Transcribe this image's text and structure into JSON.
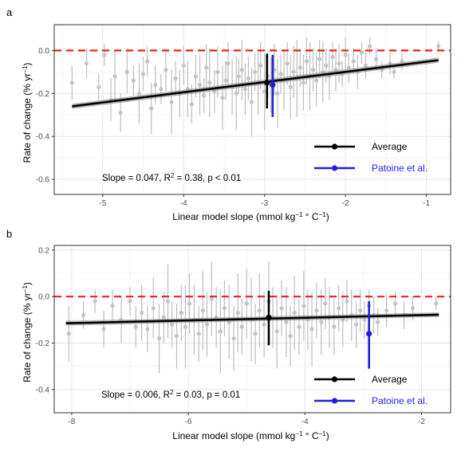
{
  "chart_data": [
    {
      "panel_label": "a",
      "type": "scatter",
      "xlabel": "Linear model slope (mmol kg",
      "xlabel_sup": "−1",
      "xlabel_tail": " ° C",
      "xlabel_sup2": "−1",
      "xlabel_close": ")",
      "ylabel": "Rate of change (% yr",
      "ylabel_sup": "−1",
      "ylabel_close": ")",
      "xlim": [
        -5.6,
        -0.7
      ],
      "ylim": [
        -0.67,
        0.12
      ],
      "xticks": [
        -5,
        -4,
        -3,
        -2,
        -1
      ],
      "xtick_labels": [
        "-5",
        "-4",
        "-3",
        "-2",
        "-1"
      ],
      "yticks": [
        0.0,
        -0.2,
        -0.4,
        -0.6
      ],
      "ytick_labels": [
        "0.0",
        "-0.2",
        "-0.4",
        "-0.6"
      ],
      "grid": true,
      "zero_line": 0.0,
      "regression": {
        "x": [
          -5.38,
          -0.85
        ],
        "y": [
          -0.26,
          -0.045
        ],
        "ci_halfwidth": 0.012
      },
      "stats_text": "Slope = 0.047,  R",
      "stats_sup": "2",
      "stats_tail": " = 0.38, p < 0.01",
      "average": {
        "x": -2.97,
        "y": -0.15,
        "low": -0.27,
        "high": -0.015
      },
      "patoine": {
        "x": -2.9,
        "y": -0.16,
        "low": -0.31,
        "high": -0.02
      },
      "legend_position": "bottom-right",
      "legend": [
        {
          "label": "Average",
          "color": "#000000"
        },
        {
          "label": "Patoine et al.",
          "color": "#1f1fe0"
        }
      ],
      "points": [
        [
          -5.38,
          -0.15,
          0.08
        ],
        [
          -5.2,
          -0.06,
          0.07
        ],
        [
          -5.05,
          -0.17,
          0.06
        ],
        [
          -4.98,
          -0.02,
          0.05
        ],
        [
          -4.9,
          -0.23,
          0.1
        ],
        [
          -4.85,
          -0.12,
          0.12
        ],
        [
          -4.78,
          -0.29,
          0.09
        ],
        [
          -4.7,
          -0.1,
          0.1
        ],
        [
          -4.62,
          -0.14,
          0.07
        ],
        [
          -4.55,
          -0.2,
          0.14
        ],
        [
          -4.5,
          -0.11,
          0.08
        ],
        [
          -4.45,
          -0.05,
          0.07
        ],
        [
          -4.4,
          -0.27,
          0.12
        ],
        [
          -4.35,
          -0.16,
          0.09
        ],
        [
          -4.28,
          -0.18,
          0.07
        ],
        [
          -4.22,
          -0.09,
          0.1
        ],
        [
          -4.15,
          -0.24,
          0.15
        ],
        [
          -4.1,
          -0.13,
          0.08
        ],
        [
          -4.05,
          -0.2,
          0.11
        ],
        [
          -4.0,
          -0.07,
          0.09
        ],
        [
          -3.95,
          -0.18,
          0.13
        ],
        [
          -3.9,
          -0.25,
          0.09
        ],
        [
          -3.85,
          -0.12,
          0.1
        ],
        [
          -3.8,
          -0.16,
          0.14
        ],
        [
          -3.75,
          -0.21,
          0.08
        ],
        [
          -3.72,
          -0.08,
          0.11
        ],
        [
          -3.68,
          -0.15,
          0.16
        ],
        [
          -3.62,
          -0.19,
          0.1
        ],
        [
          -3.58,
          -0.1,
          0.12
        ],
        [
          -3.52,
          -0.22,
          0.15
        ],
        [
          -3.48,
          -0.14,
          0.09
        ],
        [
          -3.45,
          -0.06,
          0.1
        ],
        [
          -3.4,
          -0.17,
          0.13
        ],
        [
          -3.35,
          -0.2,
          0.17
        ],
        [
          -3.32,
          -0.12,
          0.08
        ],
        [
          -3.28,
          -0.09,
          0.14
        ],
        [
          -3.24,
          -0.18,
          0.12
        ],
        [
          -3.2,
          -0.13,
          0.1
        ],
        [
          -3.16,
          -0.24,
          0.16
        ],
        [
          -3.12,
          -0.1,
          0.09
        ],
        [
          -3.08,
          -0.15,
          0.15
        ],
        [
          -3.05,
          -0.07,
          0.11
        ],
        [
          -3.0,
          -0.19,
          0.18
        ],
        [
          -2.96,
          -0.12,
          0.1
        ],
        [
          -2.92,
          -0.16,
          0.13
        ],
        [
          -2.88,
          -0.09,
          0.12
        ],
        [
          -2.84,
          -0.2,
          0.16
        ],
        [
          -2.8,
          -0.11,
          0.09
        ],
        [
          -2.76,
          -0.14,
          0.14
        ],
        [
          -2.72,
          -0.06,
          0.1
        ],
        [
          -2.68,
          -0.17,
          0.15
        ],
        [
          -2.64,
          -0.1,
          0.12
        ],
        [
          -2.6,
          -0.13,
          0.18
        ],
        [
          -2.56,
          -0.08,
          0.09
        ],
        [
          -2.52,
          -0.15,
          0.13
        ],
        [
          -2.48,
          -0.05,
          0.11
        ],
        [
          -2.44,
          -0.12,
          0.16
        ],
        [
          -2.4,
          -0.09,
          0.1
        ],
        [
          -2.36,
          -0.14,
          0.12
        ],
        [
          -2.32,
          -0.04,
          0.09
        ],
        [
          -2.28,
          -0.1,
          0.14
        ],
        [
          -2.24,
          -0.07,
          0.08
        ],
        [
          -2.2,
          -0.12,
          0.11
        ],
        [
          -2.16,
          -0.03,
          0.07
        ],
        [
          -2.12,
          -0.09,
          0.1
        ],
        [
          -2.08,
          -0.06,
          0.09
        ],
        [
          -2.04,
          -0.11,
          0.06
        ],
        [
          -2.0,
          -0.02,
          0.08
        ],
        [
          -1.96,
          -0.08,
          0.07
        ],
        [
          -1.9,
          -0.05,
          0.06
        ],
        [
          -1.85,
          -0.1,
          0.08
        ],
        [
          -1.8,
          -0.01,
          0.05
        ],
        [
          -1.75,
          -0.07,
          0.06
        ],
        [
          -1.7,
          0.02,
          0.04
        ],
        [
          -1.62,
          -0.04,
          0.05
        ],
        [
          -1.55,
          -0.09,
          0.04
        ],
        [
          -1.45,
          -0.06,
          0.05
        ],
        [
          -1.4,
          -0.1,
          0.03
        ],
        [
          -1.3,
          -0.05,
          0.04
        ],
        [
          -0.85,
          0.02,
          0.02
        ]
      ]
    },
    {
      "panel_label": "b",
      "type": "scatter",
      "xlabel": "Linear model slope (mmol kg",
      "xlabel_sup": "−1",
      "xlabel_tail": " ° C",
      "xlabel_sup2": "−1",
      "xlabel_close": ")",
      "ylabel": "Rate of change (% yr",
      "ylabel_sup": "−1",
      "ylabel_close": ")",
      "xlim": [
        -8.3,
        -1.5
      ],
      "ylim": [
        -0.5,
        0.22
      ],
      "xticks": [
        -8,
        -6,
        -4,
        -2
      ],
      "xtick_labels": [
        "-8",
        "-6",
        "-4",
        "-2"
      ],
      "yticks": [
        0.2,
        0.0,
        -0.2,
        -0.4
      ],
      "ytick_labels": [
        "0.2",
        "0.0",
        "-0.2",
        "-0.4"
      ],
      "grid": true,
      "zero_line": 0.0,
      "regression": {
        "x": [
          -8.1,
          -1.7
        ],
        "y": [
          -0.115,
          -0.078
        ],
        "ci_halfwidth": 0.01
      },
      "stats_text": "Slope = 0.006,  R",
      "stats_sup": "2",
      "stats_tail": " = 0.03, p = 0.01",
      "average": {
        "x": -4.62,
        "y": -0.09,
        "low": -0.21,
        "high": 0.025
      },
      "patoine": {
        "x": -2.9,
        "y": -0.16,
        "low": -0.31,
        "high": -0.02
      },
      "legend_position": "bottom-right",
      "legend": [
        {
          "label": "Average",
          "color": "#000000"
        },
        {
          "label": "Patoine et al.",
          "color": "#1f1fe0"
        }
      ],
      "points": [
        [
          -8.05,
          -0.16,
          0.12
        ],
        [
          -7.8,
          -0.08,
          0.06
        ],
        [
          -7.6,
          -0.02,
          0.05
        ],
        [
          -7.45,
          -0.14,
          0.08
        ],
        [
          -7.3,
          -0.04,
          0.07
        ],
        [
          -7.15,
          -0.1,
          0.1
        ],
        [
          -7.0,
          -0.02,
          0.06
        ],
        [
          -6.9,
          -0.13,
          0.09
        ],
        [
          -6.8,
          -0.07,
          0.12
        ],
        [
          -6.7,
          -0.14,
          0.1
        ],
        [
          -6.6,
          -0.05,
          0.13
        ],
        [
          -6.5,
          -0.18,
          0.15
        ],
        [
          -6.42,
          -0.09,
          0.11
        ],
        [
          -6.35,
          -0.02,
          0.16
        ],
        [
          -6.28,
          -0.12,
          0.1
        ],
        [
          -6.2,
          -0.17,
          0.14
        ],
        [
          -6.12,
          -0.07,
          0.12
        ],
        [
          -6.05,
          -0.13,
          0.18
        ],
        [
          -5.98,
          -0.03,
          0.13
        ],
        [
          -5.9,
          -0.1,
          0.15
        ],
        [
          -5.82,
          -0.16,
          0.12
        ],
        [
          -5.75,
          -0.06,
          0.17
        ],
        [
          -5.68,
          -0.12,
          0.14
        ],
        [
          -5.6,
          -0.01,
          0.16
        ],
        [
          -5.52,
          -0.09,
          0.13
        ],
        [
          -5.45,
          -0.15,
          0.18
        ],
        [
          -5.38,
          -0.05,
          0.12
        ],
        [
          -5.3,
          -0.11,
          0.16
        ],
        [
          -5.22,
          -0.18,
          0.14
        ],
        [
          -5.15,
          -0.07,
          0.17
        ],
        [
          -5.08,
          -0.13,
          0.12
        ],
        [
          -5.0,
          -0.03,
          0.15
        ],
        [
          -4.92,
          -0.1,
          0.18
        ],
        [
          -4.85,
          -0.16,
          0.13
        ],
        [
          -4.78,
          -0.06,
          0.16
        ],
        [
          -4.7,
          -0.12,
          0.14
        ],
        [
          -4.62,
          -0.02,
          0.17
        ],
        [
          -4.55,
          -0.09,
          0.13
        ],
        [
          -4.48,
          -0.15,
          0.16
        ],
        [
          -4.4,
          -0.05,
          0.12
        ],
        [
          -4.32,
          -0.11,
          0.15
        ],
        [
          -4.25,
          -0.17,
          0.13
        ],
        [
          -4.18,
          -0.07,
          0.16
        ],
        [
          -4.1,
          -0.13,
          0.12
        ],
        [
          -4.02,
          -0.04,
          0.15
        ],
        [
          -3.95,
          -0.1,
          0.13
        ],
        [
          -3.88,
          -0.14,
          0.16
        ],
        [
          -3.8,
          -0.06,
          0.12
        ],
        [
          -3.72,
          -0.11,
          0.14
        ],
        [
          -3.65,
          -0.03,
          0.11
        ],
        [
          -3.58,
          -0.09,
          0.13
        ],
        [
          -3.5,
          -0.13,
          0.12
        ],
        [
          -3.42,
          -0.05,
          0.1
        ],
        [
          -3.35,
          -0.1,
          0.12
        ],
        [
          -3.28,
          -0.02,
          0.09
        ],
        [
          -3.2,
          -0.08,
          0.11
        ],
        [
          -3.12,
          -0.12,
          0.1
        ],
        [
          -3.05,
          -0.06,
          0.09
        ],
        [
          -2.98,
          -0.1,
          0.08
        ],
        [
          -2.9,
          -0.04,
          0.07
        ],
        [
          -2.82,
          -0.08,
          0.08
        ],
        [
          -2.75,
          -0.11,
          0.06
        ],
        [
          -2.6,
          -0.06,
          0.07
        ],
        [
          -2.45,
          -0.03,
          0.05
        ],
        [
          -2.3,
          -0.08,
          0.06
        ],
        [
          -2.15,
          -0.05,
          0.05
        ],
        [
          -1.75,
          -0.03,
          0.03
        ]
      ]
    }
  ]
}
